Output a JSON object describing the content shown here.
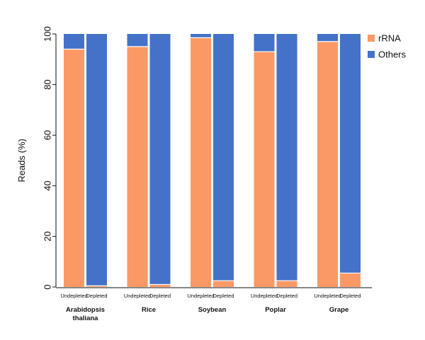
{
  "chart_data": {
    "type": "bar",
    "stacked": true,
    "ylabel": "Reads (%)",
    "ylim": [
      0,
      100
    ],
    "yticks": [
      0,
      20,
      40,
      60,
      80,
      100
    ],
    "groups": [
      {
        "label_lines": [
          "Arabidopsis",
          "thaliana"
        ],
        "bars": [
          {
            "label": "Undepleted",
            "rRNA": 94,
            "Others": 6
          },
          {
            "label": "Depleted",
            "rRNA": 0.5,
            "Others": 99.5
          }
        ]
      },
      {
        "label_lines": [
          "Rice"
        ],
        "bars": [
          {
            "label": "Undepleted",
            "rRNA": 95,
            "Others": 5
          },
          {
            "label": "Depleted",
            "rRNA": 1,
            "Others": 99
          }
        ]
      },
      {
        "label_lines": [
          "Soybean"
        ],
        "bars": [
          {
            "label": "Undepleted",
            "rRNA": 98.5,
            "Others": 1.5
          },
          {
            "label": "Depleted",
            "rRNA": 2.5,
            "Others": 97.5
          }
        ]
      },
      {
        "label_lines": [
          "Poplar"
        ],
        "bars": [
          {
            "label": "Undepleted",
            "rRNA": 93,
            "Others": 7
          },
          {
            "label": "Depleted",
            "rRNA": 2.5,
            "Others": 97.5
          }
        ]
      },
      {
        "label_lines": [
          "Grape"
        ],
        "bars": [
          {
            "label": "Undepleted",
            "rRNA": 97,
            "Others": 3
          },
          {
            "label": "Depleted",
            "rRNA": 5.5,
            "Others": 94.5
          }
        ]
      }
    ],
    "series": [
      {
        "name": "rRNA",
        "color": "#FB9966"
      },
      {
        "name": "Others",
        "color": "#4472C8"
      }
    ],
    "legend_position": "top-right",
    "grid": false
  }
}
